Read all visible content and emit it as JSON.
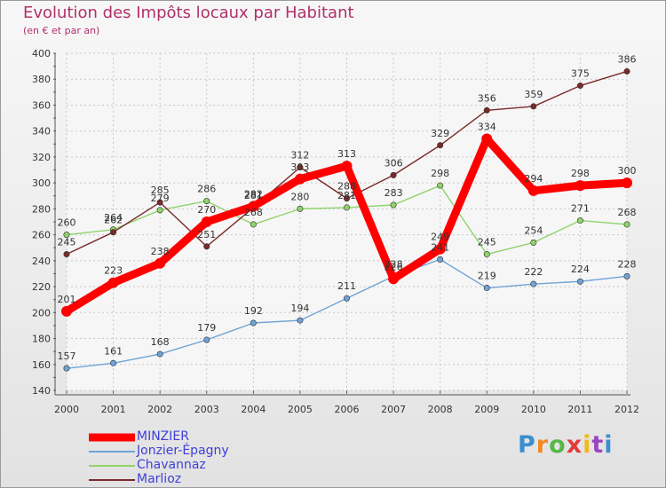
{
  "header": {
    "title": "Evolution des Impôts locaux par Habitant",
    "subtitle": "(en € et par an)"
  },
  "brand": {
    "text": "Proxiti",
    "colors": [
      "#3a8fd0",
      "#f08a24",
      "#56b847",
      "#e23a3a",
      "#f2b81e",
      "#9a47c0",
      "#3a8fd0"
    ]
  },
  "chart_data": {
    "type": "line",
    "title": "Evolution des Impôts locaux par Habitant",
    "subtitle": "(en € et par an)",
    "xlabel": "",
    "ylabel": "",
    "x": [
      "2000",
      "2001",
      "2002",
      "2003",
      "2004",
      "2005",
      "2006",
      "2007",
      "2008",
      "2009",
      "2010",
      "2011",
      "2012"
    ],
    "ylim": [
      140,
      400
    ],
    "yticks": [
      140,
      160,
      180,
      200,
      220,
      240,
      260,
      280,
      300,
      320,
      340,
      360,
      380,
      400
    ],
    "grid": true,
    "legend_position": "bottom-left",
    "series": [
      {
        "name": "MINZIER",
        "color": "#ff0000",
        "emphasis": true,
        "values": [
          201,
          223,
          238,
          270,
          282,
          303,
          313,
          226,
          249,
          334,
          294,
          298,
          300
        ],
        "labels": [
          "201",
          "223",
          "238",
          "270",
          "282",
          "303",
          "313",
          "226",
          "249",
          "334",
          "294",
          "298",
          "300"
        ]
      },
      {
        "name": "Jonzier-Épagny",
        "color": "#6fa3d6",
        "emphasis": false,
        "values": [
          157,
          161,
          168,
          179,
          192,
          194,
          211,
          228,
          241,
          219,
          222,
          224,
          228
        ],
        "labels": [
          "157",
          "161",
          "168",
          "179",
          "192",
          "194",
          "211",
          "228",
          "241",
          "219",
          "222",
          "224",
          "228"
        ]
      },
      {
        "name": "Chavannaz",
        "color": "#8fd36a",
        "emphasis": false,
        "values": [
          260,
          264,
          279,
          286,
          268,
          280,
          281,
          283,
          298,
          245,
          254,
          271,
          268
        ],
        "labels": [
          "260",
          "264",
          "279",
          "286",
          "268",
          "280",
          "281",
          "283",
          "298",
          "245",
          "254",
          "271",
          "268"
        ]
      },
      {
        "name": "Marlioz",
        "color": "#7a2a2a",
        "emphasis": false,
        "values": [
          245,
          262,
          285,
          251,
          281,
          312,
          288,
          306,
          329,
          356,
          359,
          375,
          386
        ],
        "labels": [
          "245",
          "262",
          "285",
          "251",
          "281",
          "312",
          "288",
          "306",
          "329",
          "356",
          "359",
          "375",
          "386"
        ]
      }
    ]
  }
}
